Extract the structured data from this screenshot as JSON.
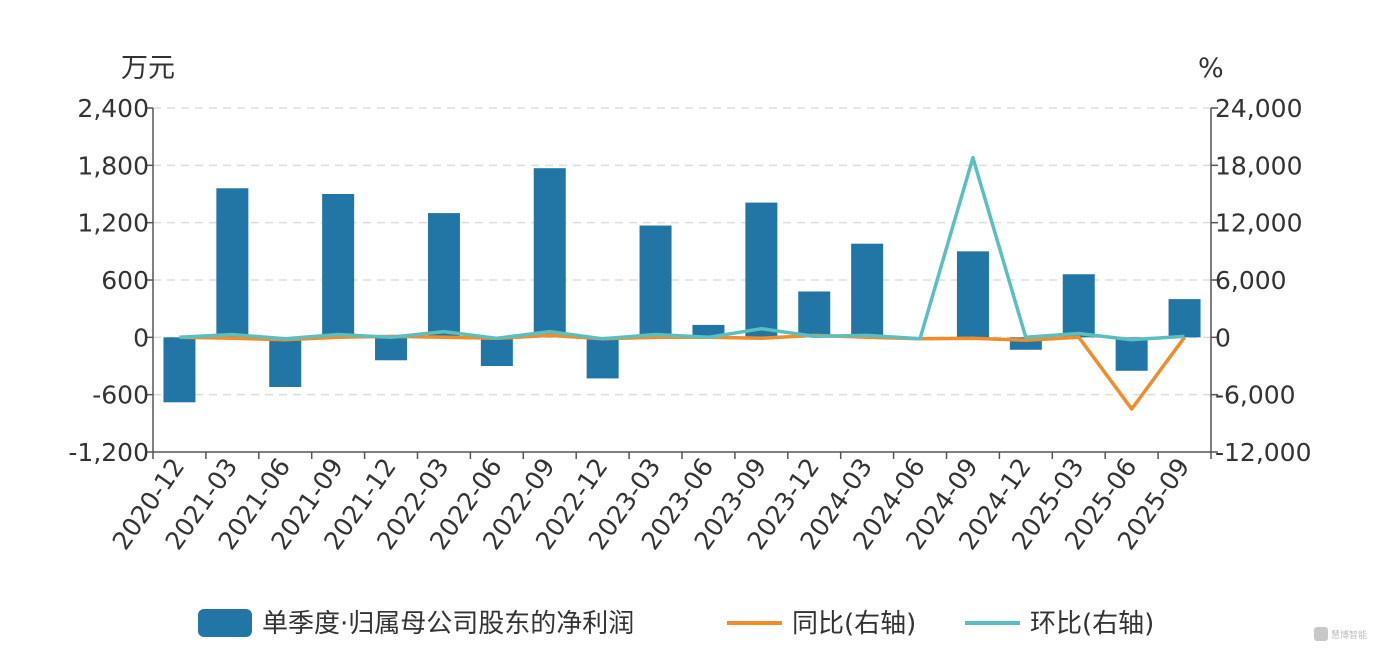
{
  "chart_data": {
    "type": "bar",
    "categories": [
      "2020-12",
      "2021-03",
      "2021-06",
      "2021-09",
      "2021-12",
      "2022-03",
      "2022-06",
      "2022-09",
      "2022-12",
      "2023-03",
      "2023-06",
      "2023-09",
      "2023-12",
      "2024-03",
      "2024-06",
      "2024-09",
      "2024-12",
      "2025-03",
      "2025-06",
      "2025-09"
    ],
    "y_left": {
      "unit": "万元",
      "ylim": [
        -1200,
        2400
      ],
      "ticks": [
        -1200,
        -600,
        0,
        600,
        1200,
        1800,
        2400
      ],
      "tick_labels": [
        "-1,200",
        "-600",
        "0",
        "600",
        "1,200",
        "1,800",
        "2,400"
      ]
    },
    "y_right": {
      "unit": "%",
      "ylim": [
        -12000,
        24000
      ],
      "ticks": [
        -12000,
        -6000,
        0,
        6000,
        12000,
        18000,
        24000
      ],
      "tick_labels": [
        "-12,000",
        "-6,000",
        "0",
        "6,000",
        "12,000",
        "18,000",
        "24,000"
      ]
    },
    "grid": true,
    "legend_position": "bottom",
    "series": [
      {
        "name": "单季度·归属母公司股东的净利润",
        "type": "bar",
        "axis": "left",
        "color": "#2176a5",
        "values": [
          -680,
          1560,
          -520,
          1500,
          -240,
          1300,
          -300,
          1770,
          -430,
          1170,
          130,
          1410,
          480,
          980,
          0,
          900,
          -130,
          660,
          -350,
          400
        ]
      },
      {
        "name": "同比(右轴)",
        "type": "line",
        "axis": "right",
        "color": "#f28c28",
        "values": [
          0,
          -100,
          -250,
          0,
          100,
          0,
          -100,
          200,
          -150,
          0,
          0,
          -100,
          200,
          0,
          -150,
          -100,
          -300,
          0,
          -7500,
          0
        ]
      },
      {
        "name": "环比(右轴)",
        "type": "line",
        "axis": "right",
        "color": "#5bbfbf",
        "values": [
          0,
          300,
          -150,
          300,
          0,
          600,
          -100,
          600,
          -150,
          300,
          0,
          900,
          100,
          200,
          -150,
          18800,
          0,
          400,
          -250,
          100
        ]
      }
    ]
  },
  "watermark": {
    "text": "慧博智能",
    "icon": "logo-icon"
  }
}
